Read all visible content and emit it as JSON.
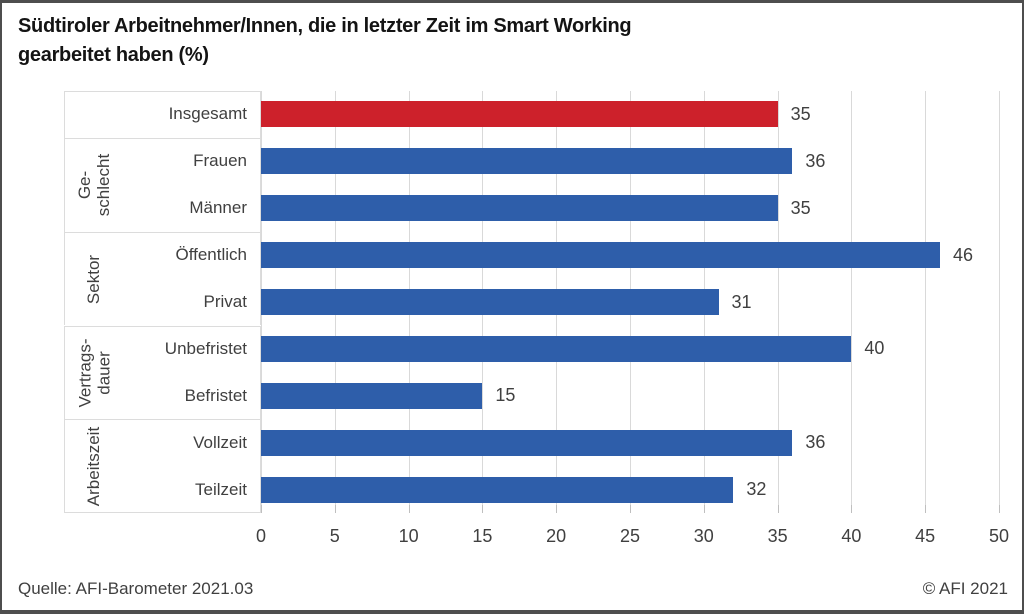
{
  "header": {
    "lines": [
      "Südtiroler Arbeitnehmer/Innen, die in letzter Zeit im Smart Working",
      "gearbeitet haben  (%)"
    ]
  },
  "footer": {
    "source": "Quelle: AFI-Barometer 2021.03",
    "copyright": "© AFI 2021"
  },
  "chart_data": {
    "type": "bar",
    "orientation": "horizontal",
    "title": "Südtiroler Arbeitnehmer/Innen, die in letzter Zeit im Smart Working gearbeitet haben (%)",
    "xlabel": "",
    "ylabel": "",
    "xlim": [
      0,
      50
    ],
    "xticks": [
      0,
      5,
      10,
      15,
      20,
      25,
      30,
      35,
      40,
      45,
      50
    ],
    "grid": true,
    "value_labels": true,
    "legend": "none",
    "colors": {
      "default_bar": "#2E5EAA",
      "highlight_bar": "#CD212B",
      "gridline": "#D9D9D9",
      "text": "#404040"
    },
    "groups": [
      {
        "label": "",
        "categories": [
          "Insgesamt"
        ],
        "values": [
          35
        ],
        "color": "#CD212B"
      },
      {
        "label": "Ge-\nschlecht",
        "categories": [
          "Frauen",
          "Männer"
        ],
        "values": [
          36,
          35
        ],
        "color": "#2E5EAA"
      },
      {
        "label": "Sektor",
        "categories": [
          "Öffentlich",
          "Privat"
        ],
        "values": [
          46,
          31
        ],
        "color": "#2E5EAA"
      },
      {
        "label": "Vertrags-\ndauer",
        "categories": [
          "Unbefristet",
          "Befristet"
        ],
        "values": [
          40,
          15
        ],
        "color": "#2E5EAA"
      },
      {
        "label": "Arbeitszeit",
        "categories": [
          "Vollzeit",
          "Teilzeit"
        ],
        "values": [
          36,
          32
        ],
        "color": "#2E5EAA"
      }
    ]
  }
}
